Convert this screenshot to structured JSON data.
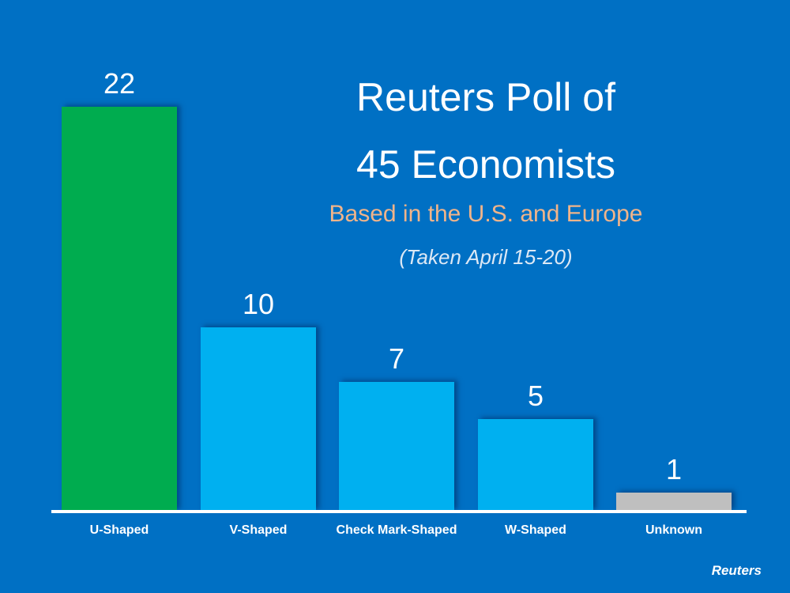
{
  "title_line1": "Reuters Poll of",
  "title_line2": "45 Economists",
  "subtitle": "Based in the U.S. and Europe",
  "date_note": "(Taken April 15-20)",
  "source": "Reuters",
  "colors": {
    "background": "#0070c4",
    "u_shaped": "#00ac4f",
    "v_check_w": "#00b0f0",
    "unknown": "#bfbfbf",
    "subtitle": "#f0b48a"
  },
  "chart_data": {
    "type": "bar",
    "title": "Reuters Poll of 45 Economists",
    "subtitle": "Based in the U.S. and Europe (Taken April 15-20)",
    "categories": [
      "U-Shaped",
      "V-Shaped",
      "Check Mark-Shaped",
      "W-Shaped",
      "Unknown"
    ],
    "values": [
      22,
      10,
      7,
      5,
      1
    ],
    "value_labels": [
      "22",
      "10",
      "7",
      "5",
      "1"
    ],
    "bar_colors": [
      "#00ac4f",
      "#00b0f0",
      "#00b0f0",
      "#00b0f0",
      "#bfbfbf"
    ],
    "xlabel": "",
    "ylabel": "",
    "ylim": [
      0,
      22
    ],
    "grid": false,
    "legend": "none",
    "source": "Reuters"
  }
}
